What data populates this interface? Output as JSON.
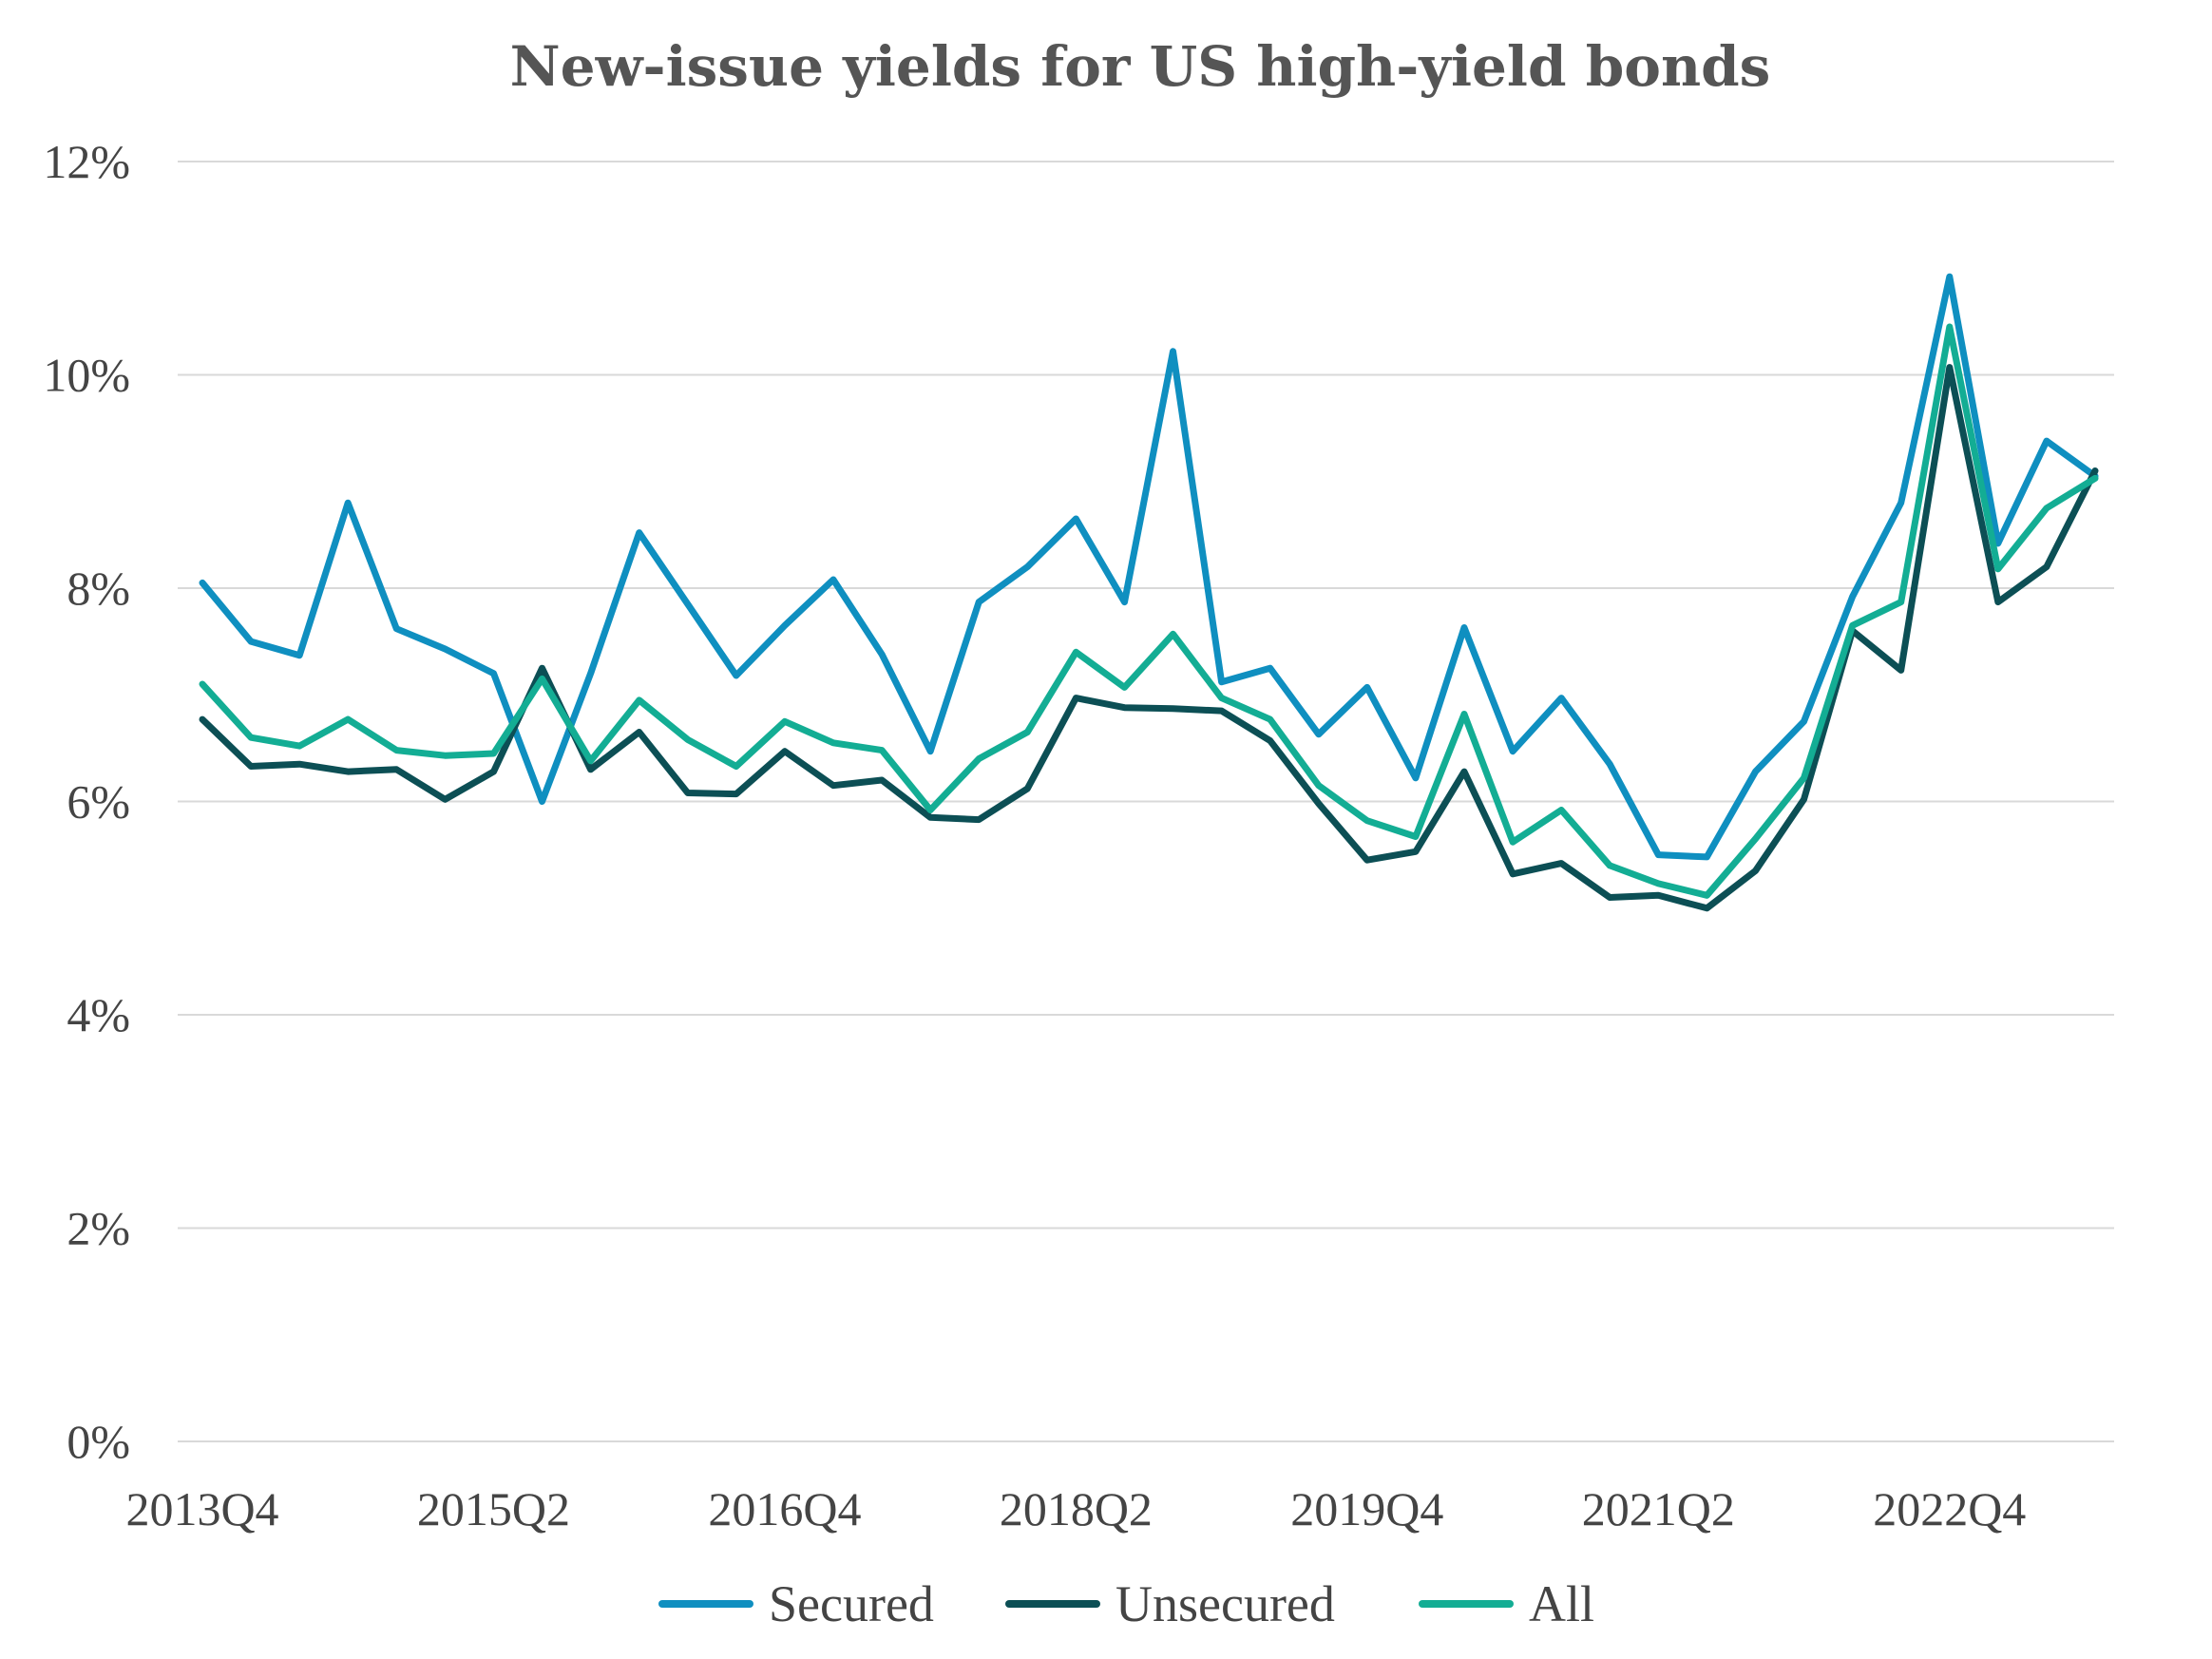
{
  "chart_data": {
    "type": "line",
    "title": "New-issue yields for US high-yield bonds",
    "xlabel": "",
    "ylabel": "",
    "ylim": [
      0,
      12
    ],
    "y_ticks": [
      "0%",
      "2%",
      "4%",
      "6%",
      "8%",
      "10%",
      "12%"
    ],
    "y_tick_values": [
      0,
      2,
      4,
      6,
      8,
      10,
      12
    ],
    "x_tick_labels": [
      "2013Q4",
      "2015Q2",
      "2016Q4",
      "2018Q2",
      "2019Q4",
      "2021Q2",
      "2022Q4"
    ],
    "x_tick_indices": [
      0,
      6,
      12,
      18,
      24,
      30,
      36
    ],
    "categories": [
      "2013Q4",
      "2014Q1",
      "2014Q2",
      "2014Q3",
      "2014Q4",
      "2015Q1",
      "2015Q2",
      "2015Q3",
      "2015Q4",
      "2016Q1",
      "2016Q2",
      "2016Q3",
      "2016Q4",
      "2017Q1",
      "2017Q2",
      "2017Q3",
      "2017Q4",
      "2018Q1",
      "2018Q2",
      "2018Q3",
      "2018Q4",
      "2019Q1",
      "2019Q2",
      "2019Q3",
      "2019Q4",
      "2020Q1",
      "2020Q2",
      "2020Q3",
      "2020Q4",
      "2021Q1",
      "2021Q2",
      "2021Q3",
      "2021Q4",
      "2022Q1",
      "2022Q2",
      "2022Q3",
      "2022Q4",
      "2023Q1",
      "2023Q2",
      "2023Q3"
    ],
    "grid": true,
    "legend_position": "bottom-center",
    "series": [
      {
        "name": "Secured",
        "color": "#0f8fc0",
        "values": [
          8.05,
          7.5,
          7.37,
          8.8,
          7.62,
          7.43,
          7.2,
          6.0,
          7.2,
          8.52,
          7.85,
          7.18,
          7.65,
          8.08,
          7.38,
          6.47,
          7.87,
          8.2,
          8.65,
          7.87,
          10.22,
          7.12,
          7.25,
          6.63,
          7.07,
          6.22,
          7.63,
          6.47,
          6.97,
          6.35,
          5.5,
          5.48,
          6.28,
          6.75,
          7.92,
          8.8,
          10.92,
          8.42,
          9.38,
          9.05
        ]
      },
      {
        "name": "Unsecured",
        "color": "#0c4f55",
        "values": [
          6.77,
          6.33,
          6.35,
          6.28,
          6.3,
          6.02,
          6.28,
          7.25,
          6.3,
          6.65,
          6.08,
          6.07,
          6.47,
          6.15,
          6.2,
          5.85,
          5.83,
          6.12,
          6.97,
          6.88,
          6.87,
          6.85,
          6.57,
          5.98,
          5.45,
          5.53,
          6.28,
          5.32,
          5.42,
          5.1,
          5.12,
          5.0,
          5.35,
          6.02,
          7.6,
          7.23,
          10.07,
          7.87,
          8.2,
          9.1
        ]
      },
      {
        "name": "All",
        "color": "#13ad94",
        "values": [
          7.1,
          6.6,
          6.52,
          6.77,
          6.48,
          6.43,
          6.45,
          7.15,
          6.38,
          6.95,
          6.58,
          6.33,
          6.75,
          6.55,
          6.48,
          5.92,
          6.4,
          6.65,
          7.4,
          7.07,
          7.57,
          6.97,
          6.77,
          6.15,
          5.82,
          5.67,
          6.82,
          5.62,
          5.92,
          5.4,
          5.23,
          5.12,
          5.65,
          6.22,
          7.65,
          7.87,
          10.45,
          8.18,
          8.75,
          9.03
        ]
      }
    ]
  }
}
